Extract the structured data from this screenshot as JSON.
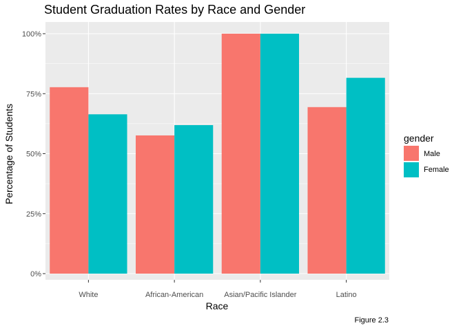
{
  "chart_data": {
    "type": "bar",
    "title": "Student Graduation Rates by Race and Gender",
    "xlabel": "Race",
    "ylabel": "Percentage of Students",
    "categories": [
      "White",
      "African-American",
      "Asian/Pacific Islander",
      "Latino"
    ],
    "series": [
      {
        "name": "Male",
        "color": "#F8766D",
        "values": [
          0.777,
          0.576,
          1.0,
          0.694
        ]
      },
      {
        "name": "Female",
        "color": "#00BFC4",
        "values": [
          0.664,
          0.619,
          1.0,
          0.816
        ]
      }
    ],
    "ylim": [
      0,
      1.0
    ],
    "y_ticks": [
      0,
      0.25,
      0.5,
      0.75,
      1.0
    ],
    "y_tick_labels": [
      "0%",
      "25%",
      "50%",
      "75%",
      "100%"
    ],
    "legend": {
      "title": "gender",
      "position": "right",
      "entries": [
        "Male",
        "Female"
      ]
    },
    "caption": "Figure 2.3",
    "grid": true,
    "panel_background": "#EBEBEB"
  }
}
